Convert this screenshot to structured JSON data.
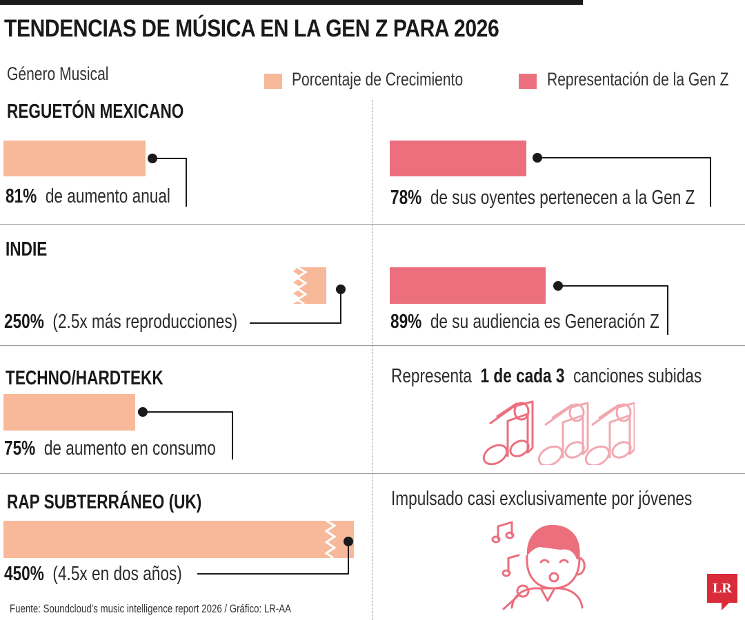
{
  "title": "TENDENCIAS DE MÚSICA EN LA GEN Z PARA 2026",
  "legend": {
    "header": "Género Musical",
    "growth_label": "Porcentaje de Crecimiento",
    "genz_label": "Representación de la Gen Z"
  },
  "colors": {
    "growth": "#f7b999",
    "genz": "#ec6f7e",
    "brand": "#d92b3a",
    "icons": "#ec6f7e"
  },
  "chart_data": {
    "type": "bar",
    "title": "TENDENCIAS DE MÚSICA EN LA GEN Z PARA 2026",
    "categories": [
      "REGUETÓN MEXICANO",
      "INDIE",
      "TECHNO/HARDTEKK",
      "RAP SUBTERRÁNEO (UK)"
    ],
    "series": [
      {
        "name": "Porcentaje de Crecimiento",
        "values": [
          81,
          250,
          75,
          450
        ]
      },
      {
        "name": "Representación de la Gen Z",
        "values": [
          78,
          89,
          null,
          null
        ]
      }
    ],
    "broken_bars": [
      "INDIE",
      "RAP SUBTERRÁNEO (UK)"
    ]
  },
  "rows": [
    {
      "genre": "REGUETÓN MEXICANO",
      "growth_value": "81%",
      "growth_text": "de aumento anual",
      "genz_value": "78%",
      "genz_text": "de sus oyentes pertenecen a la Gen Z"
    },
    {
      "genre": "INDIE",
      "growth_value": "250%",
      "growth_text": "(2.5x más reproducciones)",
      "genz_value": "89%",
      "genz_text": "de su audiencia es Generación Z"
    },
    {
      "genre": "TECHNO/HARDTEKK",
      "growth_value": "75%",
      "growth_text": "de aumento en consumo",
      "note_pre": "Representa",
      "note_bold": "1 de cada 3",
      "note_post": "canciones subidas"
    },
    {
      "genre": "RAP SUBTERRÁNEO (UK)",
      "growth_value": "450%",
      "growth_text": "(4.5x en dos años)",
      "note": "Impulsado casi exclusivamente por jóvenes"
    }
  ],
  "icons": {
    "music_note": "music-note-icon",
    "singer": "singer-icon"
  },
  "source": "Fuente: Soundcloud's music intelligence report 2026 / Gráfico: LR-AA",
  "logo": "LR"
}
